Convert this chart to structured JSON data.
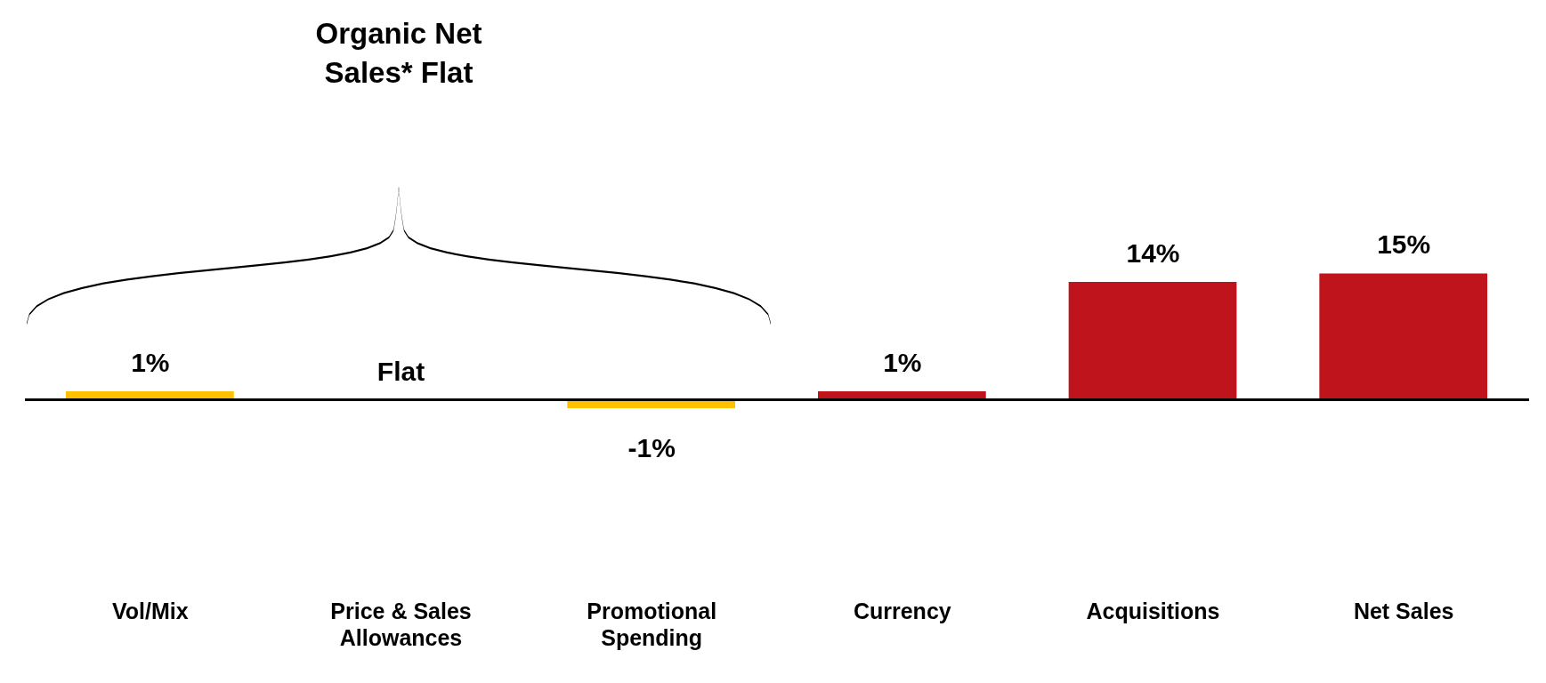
{
  "chart_data": {
    "type": "bar",
    "categories": [
      "Vol/Mix",
      "Price & Sales Allowances",
      "Promotional Spending",
      "Currency",
      "Acquisitions",
      "Net Sales"
    ],
    "values": [
      1,
      0,
      -1,
      1,
      14,
      15
    ],
    "colors": [
      "#ffc000",
      "#ffc000",
      "#ffc000",
      "#c0141c",
      "#c0141c",
      "#c0141c"
    ],
    "value_labels": [
      "1%",
      "Flat",
      "-1%",
      "1%",
      "14%",
      "15%"
    ],
    "annotations": [
      "Organic Net Sales* Flat"
    ]
  }
}
